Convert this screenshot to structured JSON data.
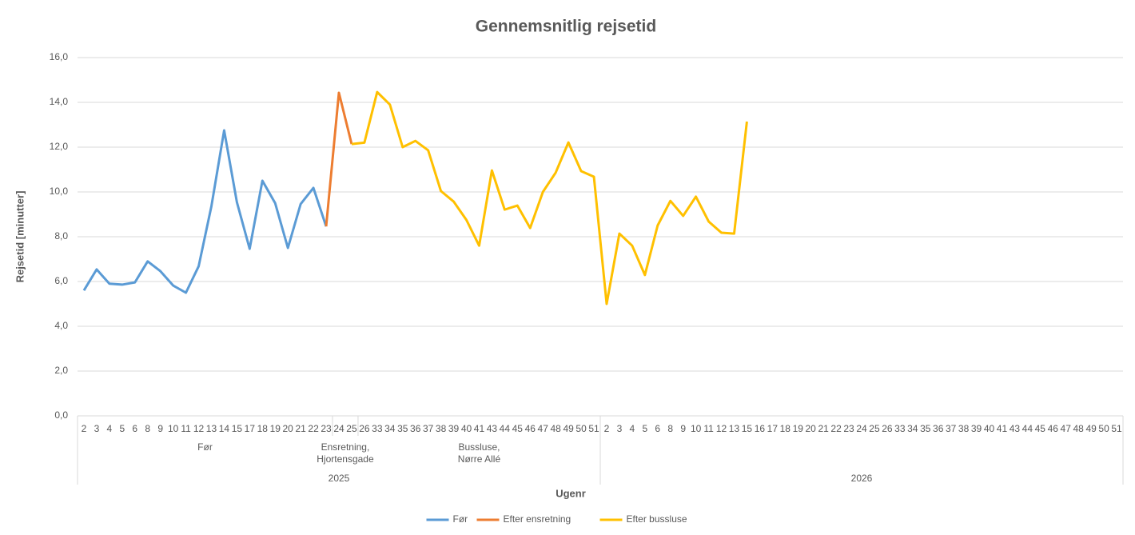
{
  "chart_data": {
    "type": "line",
    "title": "Gennemsnitlig rejsetid",
    "y_label": "Rejsetid [minutter]",
    "x_label": "Ugenr",
    "ylim": [
      0,
      16
    ],
    "yticks": [
      {
        "value": 0,
        "label": "0,0"
      },
      {
        "value": 2,
        "label": "2,0"
      },
      {
        "value": 4,
        "label": "4,0"
      },
      {
        "value": 6,
        "label": "6,0"
      },
      {
        "value": 8,
        "label": "8,0"
      },
      {
        "value": 10,
        "label": "10,0"
      },
      {
        "value": 12,
        "label": "12,0"
      },
      {
        "value": 14,
        "label": "14,0"
      },
      {
        "value": 16,
        "label": "16,0"
      }
    ],
    "grid": true,
    "legend": "bottom",
    "years": [
      {
        "label": "2025",
        "groups": [
          {
            "label": "Før",
            "weeks": [
              "2",
              "3",
              "4",
              "5",
              "6",
              "8",
              "9",
              "10",
              "11",
              "12",
              "13",
              "14",
              "15",
              "17",
              "18",
              "19",
              "20",
              "21",
              "22",
              "23"
            ]
          },
          {
            "label": "Ensretning, Hjortensgade",
            "weeks": [
              "24",
              "25"
            ]
          },
          {
            "label": "Bussluse, Nørre Allé",
            "weeks": [
              "26",
              "33",
              "34",
              "35",
              "36",
              "37",
              "38",
              "39",
              "40",
              "41",
              "43",
              "44",
              "45",
              "46",
              "47",
              "48",
              "49",
              "50",
              "51"
            ]
          }
        ]
      },
      {
        "label": "2026",
        "groups": [
          {
            "label": null,
            "weeks": [
              "2",
              "3",
              "4",
              "5",
              "6",
              "8",
              "9",
              "10",
              "11",
              "12",
              "13",
              "15",
              "16",
              "17",
              "18",
              "19",
              "20",
              "21",
              "22",
              "23",
              "24",
              "25",
              "26",
              "33",
              "34",
              "35",
              "36",
              "37",
              "38",
              "39",
              "40",
              "41",
              "43",
              "44",
              "45",
              "46",
              "47",
              "48",
              "49",
              "50",
              "51"
            ]
          }
        ]
      }
    ],
    "series": [
      {
        "name": "Før",
        "color": "#5b9bd5",
        "values": [
          5.6,
          6.54,
          5.9,
          5.86,
          5.96,
          6.9,
          6.46,
          5.82,
          5.5,
          6.68,
          9.36,
          12.75,
          9.54,
          7.46,
          10.5,
          9.5,
          7.5,
          9.46,
          10.18,
          8.46,
          null,
          null,
          null,
          null,
          null,
          null,
          null,
          null,
          null,
          null,
          null,
          null,
          null,
          null,
          null,
          null,
          null,
          null,
          null,
          null,
          null,
          null,
          null,
          null,
          null,
          null,
          null,
          null,
          null,
          null,
          null,
          null,
          null,
          null,
          null,
          null,
          null,
          null,
          null,
          null,
          null,
          null,
          null,
          null,
          null,
          null,
          null,
          null,
          null,
          null,
          null,
          null,
          null,
          null,
          null,
          null,
          null,
          null,
          null,
          null,
          null,
          null
        ]
      },
      {
        "name": "Efter ensretning",
        "color": "#ed7d31",
        "values": [
          null,
          null,
          null,
          null,
          null,
          null,
          null,
          null,
          null,
          null,
          null,
          null,
          null,
          null,
          null,
          null,
          null,
          null,
          null,
          8.46,
          14.43,
          12.14,
          null,
          null,
          null,
          null,
          null,
          null,
          null,
          null,
          null,
          null,
          null,
          null,
          null,
          null,
          null,
          null,
          null,
          null,
          null,
          null,
          null,
          null,
          null,
          null,
          null,
          null,
          null,
          null,
          null,
          null,
          null,
          null,
          null,
          null,
          null,
          null,
          null,
          null,
          null,
          null,
          null,
          null,
          null,
          null,
          null,
          null,
          null,
          null,
          null,
          null,
          null,
          null,
          null,
          null,
          null,
          null,
          null,
          null,
          null,
          null
        ]
      },
      {
        "name": "Efter bussluse",
        "color": "#ffc000",
        "values": [
          null,
          null,
          null,
          null,
          null,
          null,
          null,
          null,
          null,
          null,
          null,
          null,
          null,
          null,
          null,
          null,
          null,
          null,
          null,
          null,
          null,
          12.14,
          12.2,
          14.46,
          13.9,
          12.0,
          12.28,
          11.86,
          10.04,
          9.57,
          8.75,
          7.6,
          10.96,
          9.21,
          9.39,
          8.39,
          10.0,
          10.86,
          12.21,
          10.93,
          10.68,
          5.0,
          8.14,
          7.6,
          6.29,
          8.5,
          9.6,
          8.93,
          9.79,
          8.68,
          8.18,
          8.14,
          13.14,
          null,
          null,
          null,
          null,
          null,
          null,
          null,
          null,
          null,
          null,
          null,
          null,
          null,
          null,
          null,
          null,
          null,
          null,
          null,
          null,
          null,
          null,
          null,
          null,
          null,
          null,
          null,
          null,
          null
        ]
      }
    ]
  }
}
